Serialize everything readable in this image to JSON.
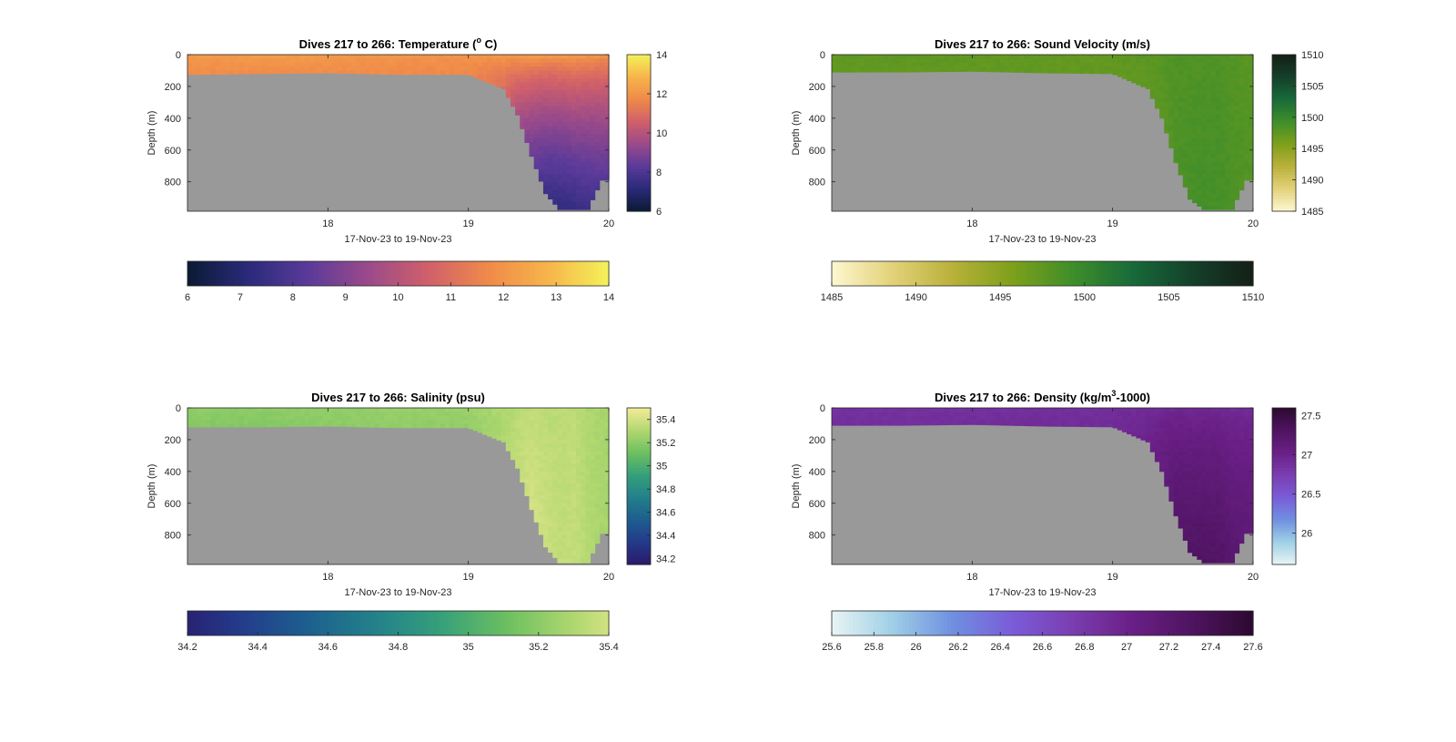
{
  "figure": {
    "background": "#ffffff",
    "panels": [
      {
        "id": "temperature",
        "title_prefix": "Dives 217 to 266: Temperature (",
        "title_sup": "o",
        "title_suffix": " C)",
        "ylabel": "Depth (m)",
        "xlabel": "17-Nov-23 to 19-Nov-23",
        "yticks": [
          "0",
          "200",
          "400",
          "600",
          "800"
        ],
        "xticks": [
          "18",
          "19",
          "20"
        ],
        "colorbar_ticks": [
          "6",
          "8",
          "10",
          "12",
          "14"
        ],
        "hbar_ticks": [
          "6",
          "7",
          "8",
          "9",
          "10",
          "11",
          "12",
          "13",
          "14"
        ]
      },
      {
        "id": "sound_velocity",
        "title_prefix": "Dives 217 to 266: Sound Velocity (m/s)",
        "title_sup": "",
        "title_suffix": "",
        "ylabel": "Depth (m)",
        "xlabel": "17-Nov-23 to 19-Nov-23",
        "yticks": [
          "0",
          "200",
          "400",
          "600",
          "800"
        ],
        "xticks": [
          "18",
          "19",
          "20"
        ],
        "colorbar_ticks": [
          "1485",
          "1490",
          "1495",
          "1500",
          "1505",
          "1510"
        ],
        "hbar_ticks": [
          "1485",
          "1490",
          "1495",
          "1500",
          "1505",
          "1510"
        ]
      },
      {
        "id": "salinity",
        "title_prefix": "Dives 217 to 266: Salinity (psu)",
        "title_sup": "",
        "title_suffix": "",
        "ylabel": "Depth (m)",
        "xlabel": "17-Nov-23 to 19-Nov-23",
        "yticks": [
          "0",
          "200",
          "400",
          "600",
          "800"
        ],
        "xticks": [
          "18",
          "19",
          "20"
        ],
        "colorbar_ticks": [
          "34.2",
          "34.4",
          "34.6",
          "34.8",
          "35",
          "35.2",
          "35.4"
        ],
        "hbar_ticks": [
          "34.2",
          "34.4",
          "34.6",
          "34.8",
          "35",
          "35.2",
          "35.4"
        ]
      },
      {
        "id": "density",
        "title_prefix": "Dives 217 to 266: Density (kg/m",
        "title_sup": "3",
        "title_suffix": "-1000)",
        "ylabel": "Depth (m)",
        "xlabel": "17-Nov-23 to 19-Nov-23",
        "yticks": [
          "0",
          "200",
          "400",
          "600",
          "800"
        ],
        "xticks": [
          "18",
          "19",
          "20"
        ],
        "colorbar_ticks": [
          "26",
          "26.5",
          "27",
          "27.5"
        ],
        "hbar_ticks": [
          "25.6",
          "25.8",
          "26",
          "26.2",
          "26.4",
          "26.6",
          "26.8",
          "27",
          "27.2",
          "27.4",
          "27.6"
        ]
      }
    ]
  },
  "chart_data": [
    {
      "type": "heatmap",
      "title": "Dives 217 to 266: Temperature (o C)",
      "xlabel": "17-Nov-23 to 19-Nov-23",
      "ylabel": "Depth (m)",
      "xlim": [
        17.0,
        20.0
      ],
      "ylim": [
        985,
        0
      ],
      "y_reversed": true,
      "color_lim": [
        6,
        14
      ],
      "colormap": [
        "#0b1a33",
        "#2a2a7a",
        "#5a3a9a",
        "#9a4a8a",
        "#d0606a",
        "#f08a4a",
        "#f7b54a",
        "#f3f25a"
      ],
      "no_data_color": "#999999",
      "gridded": {
        "x": [
          17.1,
          17.5,
          18.0,
          18.5,
          19.0,
          19.25,
          19.35,
          19.45,
          19.55,
          19.65,
          19.75,
          19.85,
          19.95
        ],
        "bottom_depth": [
          125,
          120,
          115,
          125,
          125,
          215,
          380,
          640,
          875,
          975,
          975,
          975,
          790
        ],
        "surface_value": [
          12.2,
          12.3,
          12.2,
          12.1,
          12.0,
          12.3,
          12.4,
          12.5,
          12.4,
          12.4,
          12.5,
          12.3,
          12.2
        ],
        "deep_value": [
          11.8,
          11.8,
          11.8,
          11.7,
          11.7,
          11.0,
          9.8,
          8.5,
          7.6,
          7.3,
          7.4,
          7.6,
          8.2
        ]
      }
    },
    {
      "type": "heatmap",
      "title": "Dives 217 to 266: Sound Velocity (m/s)",
      "xlabel": "17-Nov-23 to 19-Nov-23",
      "ylabel": "Depth (m)",
      "xlim": [
        17.0,
        20.0
      ],
      "ylim": [
        985,
        0
      ],
      "y_reversed": true,
      "color_lim": [
        1485,
        1510
      ],
      "colormap": [
        "#fdf7d0",
        "#e3d27a",
        "#b9b13a",
        "#7ea01a",
        "#3f8e2a",
        "#186a3a",
        "#14402a",
        "#141f15"
      ],
      "no_data_color": "#999999",
      "gridded": {
        "x": [
          17.1,
          17.5,
          18.0,
          18.5,
          19.0,
          19.25,
          19.35,
          19.45,
          19.55,
          19.65,
          19.75,
          19.85,
          19.95
        ],
        "bottom_depth": [
          110,
          110,
          105,
          115,
          120,
          215,
          400,
          680,
          910,
          975,
          975,
          975,
          790
        ],
        "surface_value": [
          1497.5,
          1497.6,
          1497.5,
          1497.4,
          1497.3,
          1497.8,
          1498.0,
          1498.3,
          1498.2,
          1498.2,
          1498.3,
          1498.0,
          1497.8
        ],
        "deep_value": [
          1497.3,
          1497.3,
          1497.3,
          1497.2,
          1497.2,
          1497.5,
          1497.8,
          1498.4,
          1498.8,
          1499.0,
          1498.9,
          1498.6,
          1498.2
        ]
      }
    },
    {
      "type": "heatmap",
      "title": "Dives 217 to 266: Salinity (psu)",
      "xlabel": "17-Nov-23 to 19-Nov-23",
      "ylabel": "Depth (m)",
      "xlim": [
        17.0,
        20.0
      ],
      "ylim": [
        985,
        0
      ],
      "y_reversed": true,
      "color_lim": [
        34.15,
        35.5
      ],
      "colormap": [
        "#2a1a6a",
        "#243a8a",
        "#1d5e8e",
        "#23808a",
        "#35a07a",
        "#6ec060",
        "#b2d870",
        "#f4eb98"
      ],
      "no_data_color": "#999999",
      "gridded": {
        "x": [
          17.1,
          17.5,
          18.0,
          18.5,
          19.0,
          19.25,
          19.35,
          19.45,
          19.55,
          19.65,
          19.75,
          19.85,
          19.95
        ],
        "bottom_depth": [
          120,
          120,
          115,
          125,
          125,
          215,
          380,
          640,
          875,
          975,
          975,
          975,
          790
        ],
        "surface_value": [
          35.22,
          35.2,
          35.22,
          35.24,
          35.24,
          35.3,
          35.32,
          35.34,
          35.33,
          35.33,
          35.34,
          35.3,
          35.28
        ],
        "deep_value": [
          35.18,
          35.18,
          35.2,
          35.21,
          35.22,
          35.3,
          35.36,
          35.4,
          35.38,
          35.35,
          35.36,
          35.32,
          35.28
        ]
      }
    },
    {
      "type": "heatmap",
      "title": "Dives 217 to 266: Density (kg/m3-1000)",
      "xlabel": "17-Nov-23 to 19-Nov-23",
      "ylabel": "Depth (m)",
      "xlim": [
        17.0,
        20.0
      ],
      "ylim": [
        985,
        0
      ],
      "y_reversed": true,
      "color_lim": [
        25.6,
        27.6
      ],
      "colormap": [
        "#e8f4f4",
        "#9fd0e6",
        "#6f90e0",
        "#7a5cd8",
        "#7a3eb0",
        "#6a1f86",
        "#4e1460",
        "#2c0a30"
      ],
      "no_data_color": "#999999",
      "gridded": {
        "x": [
          17.1,
          17.5,
          18.0,
          18.5,
          19.0,
          19.25,
          19.35,
          19.45,
          19.55,
          19.65,
          19.75,
          19.85,
          19.95
        ],
        "bottom_depth": [
          110,
          110,
          105,
          115,
          120,
          215,
          400,
          680,
          910,
          975,
          975,
          975,
          790
        ],
        "surface_value": [
          26.85,
          26.85,
          26.86,
          26.87,
          26.88,
          26.9,
          26.92,
          26.93,
          26.92,
          26.92,
          26.93,
          26.9,
          26.9
        ],
        "deep_value": [
          26.88,
          26.88,
          26.89,
          26.9,
          26.9,
          27.0,
          27.1,
          27.22,
          27.28,
          27.3,
          27.28,
          27.22,
          27.15
        ]
      }
    }
  ]
}
